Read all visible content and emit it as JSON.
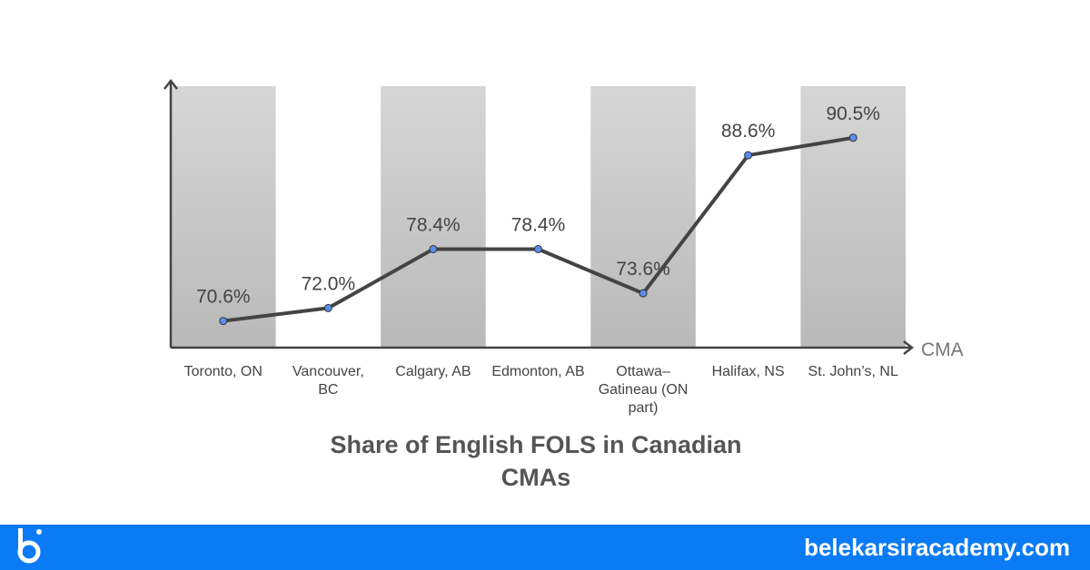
{
  "chart_data": {
    "type": "line",
    "title": "Share of English FOLS in Canadian CMAs",
    "x_label": "CMA",
    "categories": [
      "Toronto, ON",
      "Vancouver, BC",
      "Calgary, AB",
      "Edmonton, AB",
      "Ottawa–Gatineau (ON part)",
      "Halifax, NS",
      "St. John’s, NL"
    ],
    "values": [
      70.6,
      72.0,
      78.4,
      78.4,
      73.6,
      88.6,
      90.5
    ],
    "value_labels": [
      "70.6%",
      "72.0%",
      "78.4%",
      "78.4%",
      "73.6%",
      "88.6%",
      "90.5%"
    ],
    "ylim": [
      67.7,
      96.1
    ],
    "color": "#444444",
    "marker_color": "#5b8def",
    "band_color": "#cfcfcf"
  },
  "footer": {
    "website": "belekarsiracademy.com"
  }
}
